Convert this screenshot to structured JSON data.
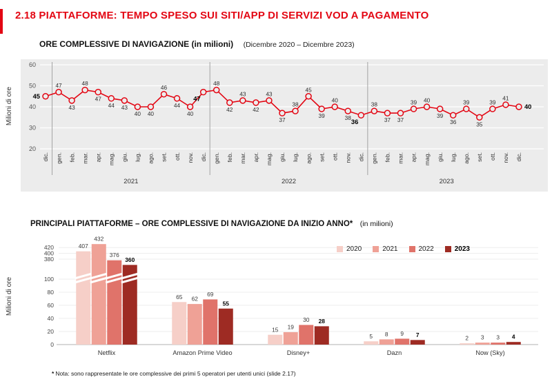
{
  "page": {
    "title": "2.18 PIATTAFORME: TEMPO SPESO SUI SITI/APP DI  SERVIZI VOD A PAGAMENTO",
    "accent_color": "#e30613",
    "footnote_marker": "*",
    "footnote_text": "Nota: sono rappresentate le ore complessive dei primi 5 operatori per utenti unici (slide 2.17)"
  },
  "chart_data": [
    {
      "type": "line",
      "title": "ORE COMPLESSIVE DI NAVIGAZIONE (in milioni)",
      "subtitle": "(Dicembre 2020 – Dicembre 2023)",
      "ylabel": "Milioni di ore",
      "ylim": [
        20,
        60
      ],
      "yticks": [
        20,
        30,
        40,
        50,
        60
      ],
      "x": [
        "dic.",
        "gen.",
        "feb.",
        "mar.",
        "apr.",
        "mag.",
        "giu.",
        "lug.",
        "ago.",
        "set.",
        "ott.",
        "nov.",
        "dic.",
        "gen.",
        "feb.",
        "mar.",
        "apr.",
        "mag.",
        "giu.",
        "lug.",
        "ago.",
        "set.",
        "ott.",
        "nov.",
        "dic.",
        "gen.",
        "feb.",
        "mar.",
        "apr.",
        "mag.",
        "giu.",
        "lug.",
        "ago.",
        "set.",
        "ott.",
        "nov.",
        "dic."
      ],
      "values": [
        45,
        47,
        43,
        48,
        47,
        44,
        43,
        40,
        40,
        46,
        44,
        40,
        47,
        48,
        42,
        43,
        42,
        43,
        37,
        38,
        45,
        39,
        40,
        38,
        36,
        38,
        37,
        37,
        39,
        40,
        39,
        36,
        39,
        35,
        39,
        41,
        40
      ],
      "bold_indices": [
        0,
        12,
        24,
        36
      ],
      "year_labels": [
        "2021",
        "2022",
        "2023"
      ],
      "separators_after": [
        0,
        12,
        24
      ],
      "line_color": "#e30613",
      "plot_bg": "#ececec",
      "grid": true,
      "legend": "none"
    },
    {
      "type": "bar",
      "title": "PRINCIPALI PIATTAFORME – ORE COMPLESSIVE DI NAVIGAZIONE DA INIZIO ANNO*",
      "title_suffix": "(in milioni)",
      "ylabel": "Milioni di ore",
      "categories": [
        "Netflix",
        "Amazon Prime Video",
        "Disney+",
        "Dazn",
        "Now (Sky)"
      ],
      "series": [
        {
          "name": "2020",
          "color": "#f6cfc8",
          "values": [
            407,
            65,
            15,
            5,
            2
          ],
          "bold": false
        },
        {
          "name": "2021",
          "color": "#efa196",
          "values": [
            432,
            62,
            19,
            8,
            3
          ],
          "bold": false
        },
        {
          "name": "2022",
          "color": "#e0736a",
          "values": [
            376,
            69,
            30,
            9,
            3
          ],
          "bold": false
        },
        {
          "name": "2023",
          "color": "#9e2b23",
          "values": [
            360,
            55,
            28,
            7,
            4
          ],
          "bold": true
        }
      ],
      "axis_break": {
        "lower_ticks": [
          0,
          20,
          40,
          60,
          80,
          100
        ],
        "upper_ticks": [
          380,
          400,
          420
        ],
        "lower_max": 100,
        "upper_min": 340
      },
      "legend_position": "top-right",
      "grid": true
    }
  ]
}
